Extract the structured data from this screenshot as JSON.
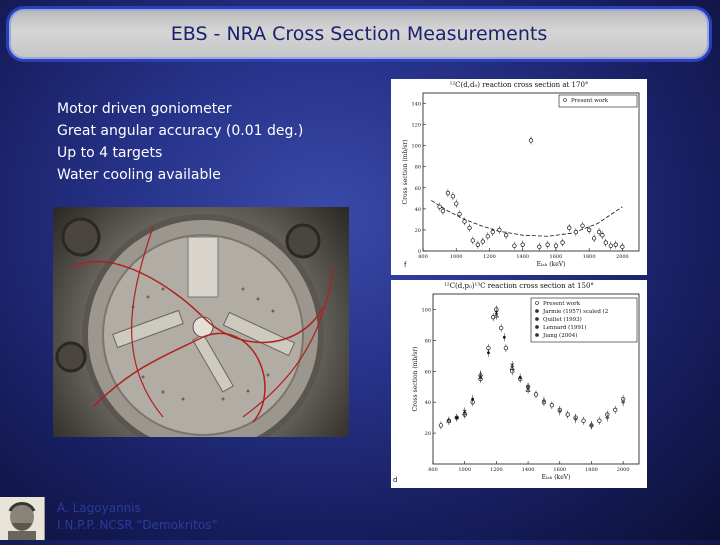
{
  "title": "EBS - NRA Cross Section Measurements",
  "bullets": [
    "Motor driven goniometer",
    "Great angular accuracy (0.01 deg.)",
    "Up to 4 targets",
    "Water cooling available"
  ],
  "author": {
    "line1": "A.   Lagoyannis",
    "line2": "I.N.P.P. NCSR “Demokritos”"
  },
  "colors": {
    "title_text": "#1a1f6e",
    "title_border": "#2a3fb8",
    "author_text": "#2b3a9e"
  },
  "chart_data": [
    {
      "type": "scatter",
      "panel_letter": "f",
      "title": "¹²C(d,d₀) reaction cross section at 170°",
      "xlabel": "Eₗₐₕ (keV)",
      "ylabel": "Cross section (mb/sr)",
      "xlim": [
        800,
        2100
      ],
      "ylim": [
        0,
        150
      ],
      "xticks": [
        "800",
        "1000",
        "1200",
        "1400",
        "1600",
        "1800",
        "2000"
      ],
      "yticks": [
        "0",
        "20",
        "40",
        "60",
        "80",
        "100",
        "120",
        "140"
      ],
      "legend": [
        "Present work"
      ],
      "legend_position": "top-right",
      "series": [
        {
          "name": "Present work",
          "x": [
            900,
            920,
            950,
            980,
            1000,
            1020,
            1050,
            1080,
            1100,
            1130,
            1160,
            1190,
            1220,
            1260,
            1300,
            1350,
            1400,
            1450,
            1500,
            1550,
            1600,
            1640,
            1680,
            1720,
            1760,
            1800,
            1830,
            1860,
            1880,
            1900,
            1930,
            1960,
            2000
          ],
          "y": [
            42,
            38,
            55,
            52,
            45,
            35,
            28,
            22,
            10,
            6,
            9,
            14,
            18,
            20,
            15,
            5,
            6,
            105,
            4,
            6,
            5,
            8,
            22,
            18,
            24,
            20,
            12,
            18,
            15,
            8,
            5,
            6,
            4
          ]
        }
      ],
      "fit_curve": {
        "x": [
          850,
          950,
          1050,
          1150,
          1250,
          1400,
          1550,
          1700,
          1850,
          2000
        ],
        "y": [
          48,
          38,
          30,
          24,
          19,
          15,
          14,
          17,
          26,
          42
        ]
      }
    },
    {
      "type": "scatter",
      "panel_letter": "d",
      "title": "¹²C(d,p₀)¹³C reaction cross section at 150°",
      "xlabel": "Eₗₐₕ (keV)",
      "ylabel": "Cross section (mb/sr)",
      "xlim": [
        800,
        2100
      ],
      "ylim": [
        0,
        110
      ],
      "xticks": [
        "800",
        "1000",
        "1200",
        "1400",
        "1600",
        "1800",
        "2000"
      ],
      "yticks": [
        "20",
        "40",
        "60",
        "80",
        "100"
      ],
      "legend": [
        "Present work",
        "Jarmie (1957) scaled (2",
        "Quillet (1993)",
        "Lennard (1991)",
        "Jiang (2004)"
      ],
      "legend_position": "top-right",
      "series": [
        {
          "name": "Present work",
          "x": [
            850,
            900,
            950,
            1000,
            1050,
            1100,
            1150,
            1180,
            1200,
            1230,
            1260,
            1300,
            1350,
            1400,
            1450,
            1500,
            1550,
            1600,
            1650,
            1700,
            1750,
            1800,
            1850,
            1900,
            1950,
            2000
          ],
          "y": [
            25,
            28,
            30,
            32,
            40,
            55,
            75,
            95,
            100,
            88,
            75,
            60,
            55,
            50,
            45,
            40,
            38,
            35,
            32,
            30,
            28,
            25,
            28,
            32,
            35,
            42
          ]
        },
        {
          "name": "Jarmie (1957) scaled (2",
          "x": [
            900,
            1000,
            1100,
            1200,
            1300,
            1400
          ],
          "y": [
            28,
            33,
            58,
            96,
            62,
            48
          ]
        },
        {
          "name": "Quillet (1993)",
          "x": [
            950,
            1050,
            1150,
            1250,
            1350
          ],
          "y": [
            30,
            42,
            72,
            82,
            56
          ]
        },
        {
          "name": "Lennard (1991)",
          "x": [
            1000,
            1100,
            1200,
            1300
          ],
          "y": [
            34,
            56,
            98,
            64
          ]
        },
        {
          "name": "Jiang (2004)",
          "x": [
            1400,
            1500,
            1600,
            1700,
            1800,
            1900,
            2000
          ],
          "y": [
            50,
            41,
            34,
            29,
            25,
            30,
            40
          ]
        }
      ]
    }
  ]
}
